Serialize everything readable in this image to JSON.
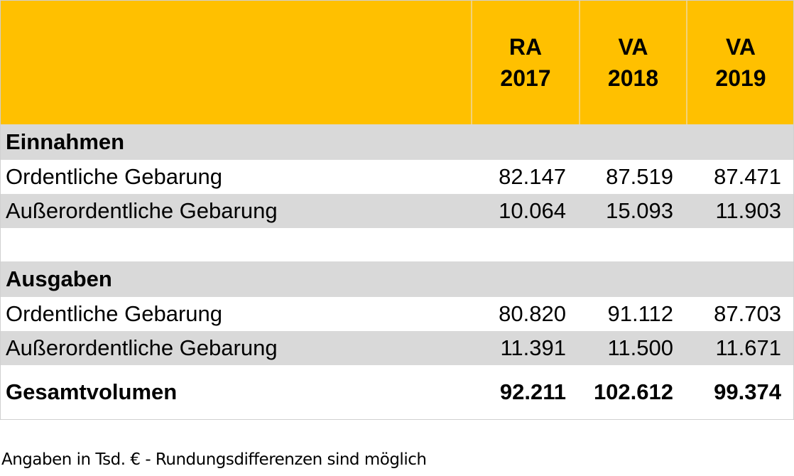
{
  "table": {
    "header": [
      [
        "RA",
        "2017"
      ],
      [
        "VA",
        "2018"
      ],
      [
        "VA",
        "2019"
      ]
    ],
    "sections": [
      {
        "title": "Einnahmen",
        "rows": [
          [
            "Ordentliche Gebarung",
            "82.147",
            "87.519",
            "87.471"
          ],
          [
            "Außerordentliche Gebarung",
            "10.064",
            "15.093",
            "11.903"
          ]
        ]
      },
      {
        "title": "Ausgaben",
        "rows": [
          [
            "Ordentliche Gebarung",
            "80.820",
            "91.112",
            "87.703"
          ],
          [
            "Außerordentliche Gebarung",
            "11.391",
            "11.500",
            "11.671"
          ]
        ]
      }
    ],
    "total": [
      "Gesamtvolumen",
      "92.211",
      "102.612",
      "99.374"
    ],
    "footnote": "Angaben in Tsd. € - Rundungsdifferenzen sind möglich"
  }
}
